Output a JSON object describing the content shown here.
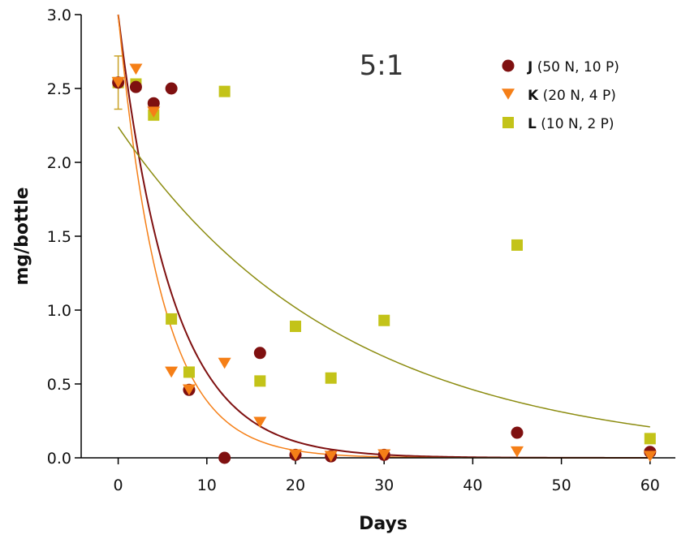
{
  "chart_data": {
    "type": "scatter",
    "title": "",
    "annotation": "5:1",
    "xlabel": "Days",
    "ylabel": "mg/bottle",
    "xlim": [
      -5,
      62
    ],
    "ylim": [
      0,
      3.0
    ],
    "x_ticks": [
      "0",
      "10",
      "20",
      "30",
      "40",
      "50",
      "60"
    ],
    "y_ticks": [
      "0.0",
      "0.5",
      "1.0",
      "1.5",
      "2.0",
      "2.5",
      "3.0"
    ],
    "grid": false,
    "legend_position": "top-right",
    "series": [
      {
        "key": "J",
        "name_bold": "J",
        "name_rest": " (50 N, 10 P)",
        "marker": "circle",
        "color": "#7f1010",
        "points": [
          [
            0,
            2.54
          ],
          [
            2,
            2.51
          ],
          [
            4,
            2.4
          ],
          [
            6,
            2.5
          ],
          [
            8,
            0.46
          ],
          [
            12,
            0.0
          ],
          [
            16,
            0.71
          ],
          [
            20,
            0.02
          ],
          [
            24,
            0.01
          ],
          [
            30,
            0.02
          ],
          [
            45,
            0.17
          ],
          [
            60,
            0.04
          ]
        ],
        "error_bar": {
          "x": 0,
          "y": 2.54,
          "low": 2.36,
          "high": 2.72
        },
        "fit": {
          "a": 3.0,
          "k": 0.165,
          "color": "#7f1010"
        }
      },
      {
        "key": "K",
        "name_bold": "K",
        "name_rest": " (20 N, 4 P)",
        "marker": "triangle-down",
        "color": "#f57f17",
        "points": [
          [
            0,
            2.54
          ],
          [
            2,
            2.63
          ],
          [
            4,
            2.34
          ],
          [
            6,
            0.58
          ],
          [
            8,
            0.46
          ],
          [
            12,
            0.64
          ],
          [
            16,
            0.24
          ],
          [
            20,
            0.02
          ],
          [
            24,
            0.01
          ],
          [
            30,
            0.02
          ],
          [
            45,
            0.04
          ],
          [
            60,
            0.01
          ]
        ],
        "fit": {
          "a": 3.0,
          "k": 0.205,
          "color": "#f57f17"
        }
      },
      {
        "key": "L",
        "name_bold": "L",
        "name_rest": " (10 N, 2 P)",
        "marker": "square",
        "color": "#c3c319",
        "points": [
          [
            0,
            2.54
          ],
          [
            2,
            2.53
          ],
          [
            4,
            2.32
          ],
          [
            6,
            0.94
          ],
          [
            8,
            0.58
          ],
          [
            12,
            2.48
          ],
          [
            16,
            0.52
          ],
          [
            20,
            0.89
          ],
          [
            24,
            0.54
          ],
          [
            30,
            0.93
          ],
          [
            45,
            1.44
          ],
          [
            60,
            0.13
          ]
        ],
        "fit": {
          "a": 2.24,
          "k": 0.0395,
          "color": "#8c8c10"
        }
      }
    ]
  }
}
